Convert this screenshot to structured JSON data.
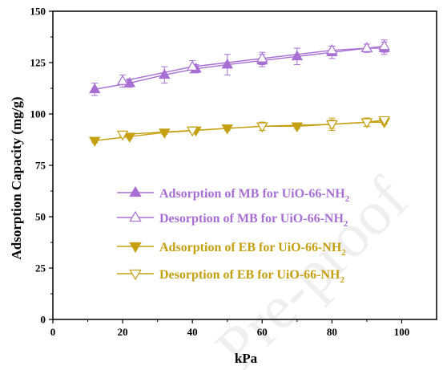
{
  "watermark": "Pre-proof",
  "chart_data": {
    "type": "line",
    "xlabel": "kPa",
    "ylabel": "Adsorption Capacity (mg/g)",
    "xlim": [
      0,
      110
    ],
    "ylim": [
      0,
      150
    ],
    "xticks": [
      0,
      20,
      40,
      60,
      80,
      100
    ],
    "yticks": [
      0,
      25,
      50,
      75,
      100,
      125,
      150
    ],
    "legend_position": "lower-left",
    "series": [
      {
        "name": "Adsorption of MB for UiO-66-NH",
        "name_sub": "2",
        "color": "#a76fd4",
        "marker": "triangle-up",
        "filled": true,
        "x": [
          12,
          22,
          32,
          41,
          50,
          60,
          70,
          80,
          90,
          95
        ],
        "y": [
          112,
          115,
          119,
          122,
          124,
          126,
          128,
          130,
          132,
          132
        ],
        "err": [
          3,
          2,
          4,
          2,
          5,
          3,
          4,
          3,
          2,
          3
        ]
      },
      {
        "name": "Desorption of MB for UiO-66-NH",
        "name_sub": "2",
        "color": "#a76fd4",
        "marker": "triangle-up",
        "filled": false,
        "x": [
          20,
          40,
          60,
          80,
          90,
          95
        ],
        "y": [
          116,
          123,
          127,
          131,
          132,
          133
        ],
        "err": [
          3,
          3,
          3,
          2,
          2,
          3
        ]
      },
      {
        "name": "Adsorption of EB for UiO-66-NH",
        "name_sub": "2",
        "color": "#c4a012",
        "marker": "triangle-down",
        "filled": true,
        "x": [
          12,
          22,
          32,
          41,
          50,
          60,
          70,
          80,
          90,
          95
        ],
        "y": [
          87,
          89,
          91,
          92,
          93,
          94,
          94,
          95,
          96,
          96
        ],
        "err": [
          1,
          1,
          1,
          1,
          1,
          2,
          1,
          2,
          2,
          1
        ]
      },
      {
        "name": "Desorption of EB for UiO-66-NH",
        "name_sub": "2",
        "color": "#c4a012",
        "marker": "triangle-down",
        "filled": false,
        "x": [
          20,
          40,
          60,
          80,
          90,
          95
        ],
        "y": [
          90,
          92,
          94,
          95,
          96,
          97
        ],
        "err": [
          1,
          1,
          2,
          3,
          2,
          1
        ]
      }
    ]
  }
}
